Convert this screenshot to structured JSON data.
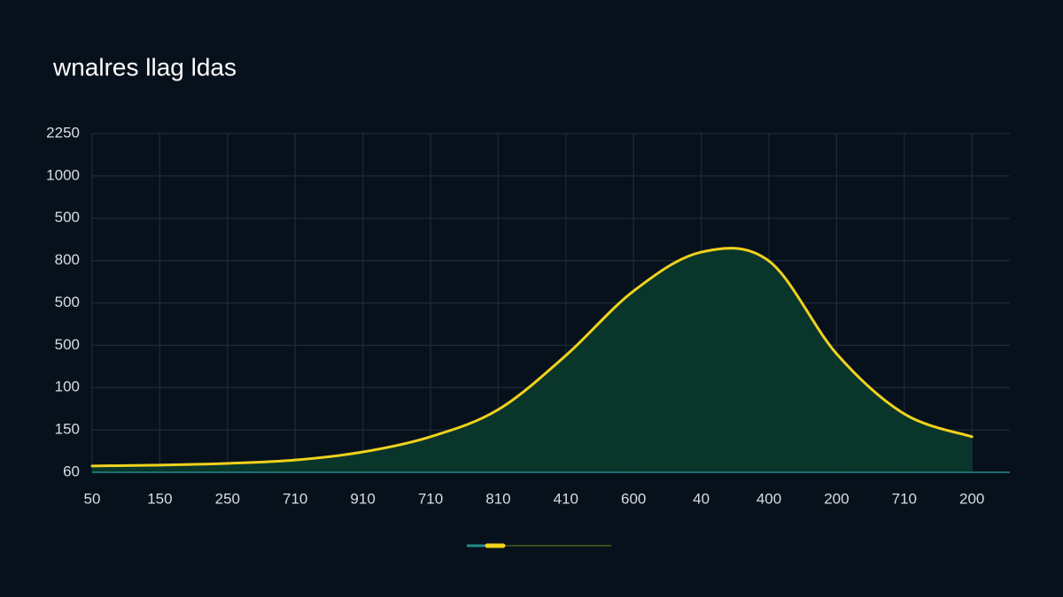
{
  "chart_data": {
    "type": "area",
    "title": "wnalres llag ldas",
    "categories": [
      "50",
      "150",
      "250",
      "710",
      "910",
      "710",
      "810",
      "410",
      "600",
      "40",
      "400",
      "200",
      "710",
      "200"
    ],
    "series": [
      {
        "color": "#f0d21c",
        "values": [
          0.15,
          0.17,
          0.21,
          0.29,
          0.48,
          0.84,
          1.48,
          2.76,
          4.28,
          5.2,
          4.99,
          2.8,
          1.38,
          0.84
        ]
      }
    ],
    "fill_color": "#0a3a2d",
    "ylim": [
      0,
      8
    ],
    "yticks": [
      {
        "value": 0,
        "label": "60"
      },
      {
        "value": 1,
        "label": "150"
      },
      {
        "value": 2,
        "label": "100"
      },
      {
        "value": 3,
        "label": "500"
      },
      {
        "value": 4,
        "label": "500"
      },
      {
        "value": 5,
        "label": "800"
      },
      {
        "value": 6,
        "label": "500"
      },
      {
        "value": 7,
        "label": "1000"
      },
      {
        "value": 8,
        "label": "2250"
      }
    ],
    "grid": true
  }
}
